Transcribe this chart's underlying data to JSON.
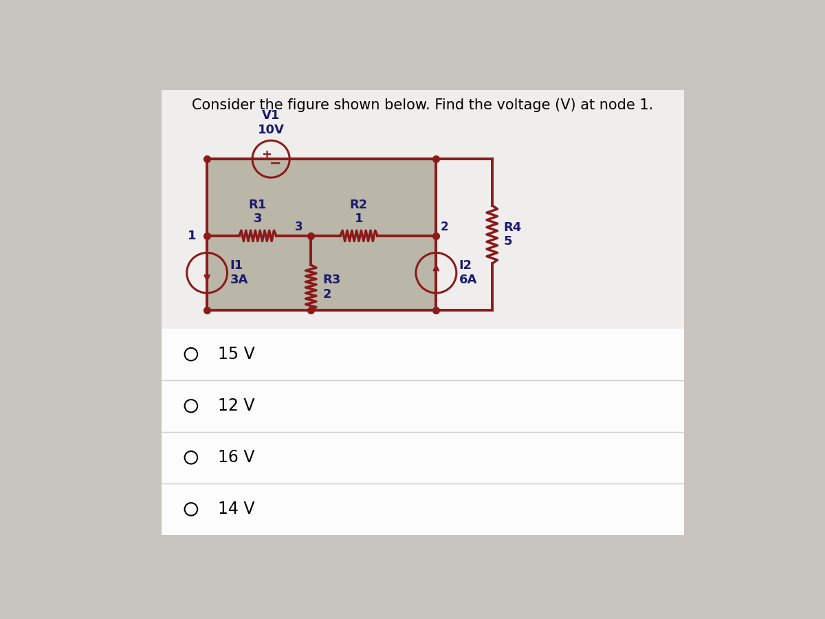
{
  "title": "Consider the figure shown below. Find the voltage (V) at node 1.",
  "title_fontsize": 15,
  "bg_color": "#c8c4c0",
  "label_color": "#1a1a6e",
  "wire_color": "#8B1A1A",
  "border_color": "#3a6a10",
  "choices": [
    "15 V",
    "12 V",
    "16 V",
    "14 V"
  ],
  "choice_fontsize": 17,
  "white_panel_color": "#f0eeec",
  "circuit_bg": "#b8b4a8",
  "node_dot_color": "#8B1A1A",
  "v1_label": "V1\n10V",
  "r1_label": "R1\n3",
  "r2_label": "R2\n1",
  "r3_label": "R3\n2",
  "r4_label": "R4\n5",
  "i1_label": "I1\n3A",
  "i2_label": "I2\n6A",
  "node1_label": "1",
  "node2_label": "2",
  "node3_label": "3"
}
